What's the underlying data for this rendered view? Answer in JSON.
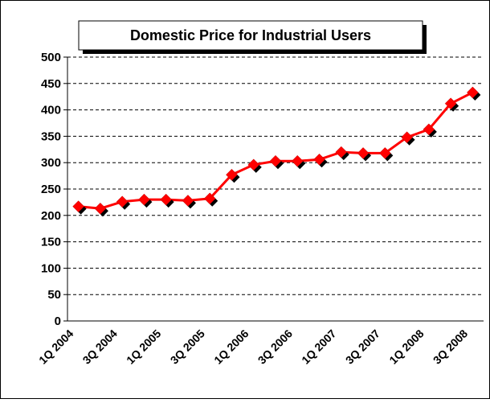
{
  "chart_data": {
    "type": "line",
    "title": "Domestic Price for Industrial Users",
    "categories": [
      "1Q 2004",
      null,
      "3Q 2004",
      null,
      "1Q 2005",
      null,
      "3Q 2005",
      null,
      "1Q 2006",
      null,
      "3Q 2006",
      null,
      "1Q 2007",
      null,
      "3Q 2007",
      null,
      "1Q 2008",
      null,
      "3Q 2008"
    ],
    "series": [
      {
        "name": "Domestic Price",
        "color": "#ff0000",
        "values": [
          217,
          213,
          226,
          230,
          230,
          228,
          232,
          277,
          296,
          303,
          303,
          306,
          320,
          318,
          318,
          348,
          363,
          412,
          433
        ]
      }
    ],
    "ylim": [
      0,
      500
    ],
    "yticks": [
      0,
      50,
      100,
      150,
      200,
      250,
      300,
      350,
      400,
      450,
      500
    ],
    "grid": true
  }
}
